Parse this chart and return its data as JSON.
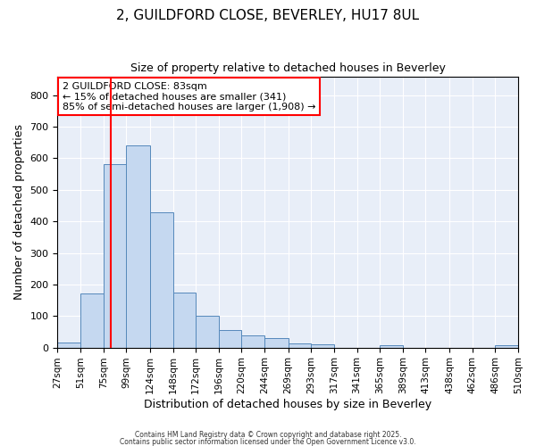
{
  "title1": "2, GUILDFORD CLOSE, BEVERLEY, HU17 8UL",
  "title2": "Size of property relative to detached houses in Beverley",
  "xlabel": "Distribution of detached houses by size in Beverley",
  "ylabel": "Number of detached properties",
  "bar_color": "#c5d8f0",
  "bar_edge_color": "#5588bb",
  "bg_color": "#e8eef8",
  "grid_color": "white",
  "vline_x": 83,
  "vline_color": "red",
  "annotation_text": "2 GUILDFORD CLOSE: 83sqm\n← 15% of detached houses are smaller (341)\n85% of semi-detached houses are larger (1,908) →",
  "annotation_box_color": "white",
  "annotation_box_edge": "red",
  "bin_edges": [
    27,
    51,
    75,
    99,
    124,
    148,
    172,
    196,
    220,
    244,
    269,
    293,
    317,
    341,
    365,
    389,
    413,
    438,
    462,
    486,
    510
  ],
  "bar_heights": [
    17,
    170,
    582,
    641,
    428,
    174,
    102,
    56,
    38,
    30,
    13,
    10,
    0,
    0,
    8,
    0,
    0,
    0,
    0,
    6
  ],
  "ylim": [
    0,
    860
  ],
  "yticks": [
    0,
    100,
    200,
    300,
    400,
    500,
    600,
    700,
    800
  ],
  "title1_fontsize": 11,
  "title2_fontsize": 9,
  "footnote1": "Contains HM Land Registry data © Crown copyright and database right 2025.",
  "footnote2": "Contains public sector information licensed under the Open Government Licence v3.0."
}
